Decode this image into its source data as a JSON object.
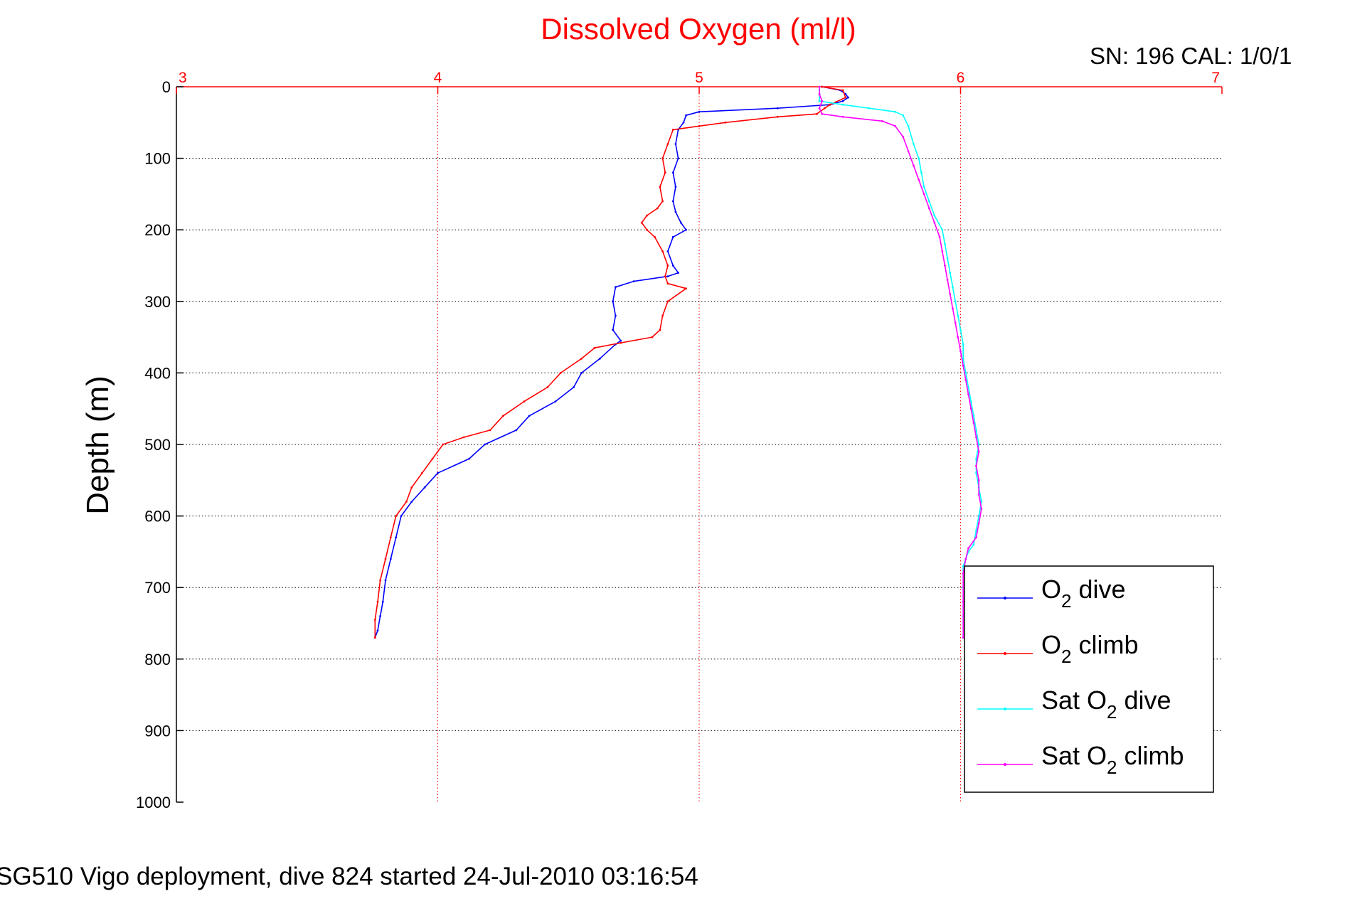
{
  "title": "Dissolved Oxygen (ml/l)",
  "sn_label": "SN: 196  CAL: 1/0/1",
  "footer": "SG510 Vigo deployment, dive 824 started 24-Jul-2010 03:16:54",
  "colors": {
    "title": "#ff0000",
    "x_axis": "#ff0000",
    "y_axis": "#000000",
    "x_grid": "#ff0000",
    "y_grid": "#000000",
    "background": "#ffffff"
  },
  "chart_data": {
    "type": "line",
    "title": "Dissolved Oxygen (ml/l)",
    "xlabel": "",
    "ylabel": "Depth (m)",
    "xlim": [
      3,
      7
    ],
    "ylim": [
      0,
      1000
    ],
    "y_reversed": true,
    "x_axis_location": "top",
    "xticks": [
      3,
      4,
      5,
      6,
      7
    ],
    "yticks": [
      0,
      100,
      200,
      300,
      400,
      500,
      600,
      700,
      800,
      900,
      1000
    ],
    "grid": true,
    "legend_position": "bottom-right",
    "series": [
      {
        "name": "O2 dive",
        "legend_main": "O",
        "legend_sub": "2",
        "legend_rest": " dive",
        "color": "#0000ff",
        "points": [
          [
            5.47,
            0
          ],
          [
            5.54,
            5
          ],
          [
            5.56,
            10
          ],
          [
            5.57,
            15
          ],
          [
            5.55,
            20
          ],
          [
            5.5,
            25
          ],
          [
            5.3,
            30
          ],
          [
            5.0,
            35
          ],
          [
            4.95,
            40
          ],
          [
            4.94,
            50
          ],
          [
            4.92,
            60
          ],
          [
            4.91,
            80
          ],
          [
            4.92,
            100
          ],
          [
            4.9,
            120
          ],
          [
            4.91,
            140
          ],
          [
            4.9,
            160
          ],
          [
            4.91,
            175
          ],
          [
            4.93,
            190
          ],
          [
            4.95,
            200
          ],
          [
            4.9,
            210
          ],
          [
            4.88,
            230
          ],
          [
            4.9,
            250
          ],
          [
            4.92,
            260
          ],
          [
            4.88,
            265
          ],
          [
            4.75,
            272
          ],
          [
            4.68,
            280
          ],
          [
            4.67,
            300
          ],
          [
            4.68,
            320
          ],
          [
            4.67,
            340
          ],
          [
            4.7,
            355
          ],
          [
            4.68,
            360
          ],
          [
            4.62,
            380
          ],
          [
            4.55,
            400
          ],
          [
            4.52,
            420
          ],
          [
            4.45,
            440
          ],
          [
            4.35,
            460
          ],
          [
            4.3,
            480
          ],
          [
            4.18,
            500
          ],
          [
            4.12,
            520
          ],
          [
            4.0,
            540
          ],
          [
            3.95,
            560
          ],
          [
            3.9,
            580
          ],
          [
            3.86,
            600
          ],
          [
            3.84,
            630
          ],
          [
            3.82,
            660
          ],
          [
            3.8,
            690
          ],
          [
            3.79,
            720
          ],
          [
            3.78,
            740
          ],
          [
            3.77,
            760
          ],
          [
            3.76,
            770
          ]
        ]
      },
      {
        "name": "O2 climb",
        "legend_main": "O",
        "legend_sub": "2",
        "legend_rest": " climb",
        "color": "#ff0000",
        "points": [
          [
            5.47,
            0
          ],
          [
            5.55,
            5
          ],
          [
            5.56,
            15
          ],
          [
            5.5,
            25
          ],
          [
            5.48,
            30
          ],
          [
            5.45,
            38
          ],
          [
            5.3,
            42
          ],
          [
            5.1,
            50
          ],
          [
            5.0,
            55
          ],
          [
            4.9,
            60
          ],
          [
            4.88,
            80
          ],
          [
            4.86,
            100
          ],
          [
            4.87,
            120
          ],
          [
            4.85,
            140
          ],
          [
            4.86,
            160
          ],
          [
            4.84,
            170
          ],
          [
            4.8,
            180
          ],
          [
            4.78,
            190
          ],
          [
            4.8,
            200
          ],
          [
            4.83,
            210
          ],
          [
            4.86,
            230
          ],
          [
            4.88,
            250
          ],
          [
            4.87,
            265
          ],
          [
            4.88,
            275
          ],
          [
            4.95,
            282
          ],
          [
            4.88,
            300
          ],
          [
            4.86,
            320
          ],
          [
            4.85,
            340
          ],
          [
            4.82,
            350
          ],
          [
            4.7,
            358
          ],
          [
            4.6,
            365
          ],
          [
            4.55,
            380
          ],
          [
            4.47,
            400
          ],
          [
            4.42,
            420
          ],
          [
            4.33,
            440
          ],
          [
            4.25,
            460
          ],
          [
            4.2,
            480
          ],
          [
            4.1,
            490
          ],
          [
            4.02,
            500
          ],
          [
            3.98,
            520
          ],
          [
            3.94,
            540
          ],
          [
            3.9,
            560
          ],
          [
            3.88,
            580
          ],
          [
            3.84,
            600
          ],
          [
            3.82,
            630
          ],
          [
            3.8,
            660
          ],
          [
            3.78,
            690
          ],
          [
            3.77,
            720
          ],
          [
            3.76,
            745
          ],
          [
            3.76,
            770
          ]
        ]
      },
      {
        "name": "Sat O2 dive",
        "legend_main": "Sat O",
        "legend_sub": "2",
        "legend_rest": " dive",
        "color": "#00ffff",
        "points": [
          [
            5.46,
            0
          ],
          [
            5.46,
            10
          ],
          [
            5.46,
            20
          ],
          [
            5.55,
            25
          ],
          [
            5.65,
            30
          ],
          [
            5.75,
            35
          ],
          [
            5.78,
            40
          ],
          [
            5.8,
            55
          ],
          [
            5.82,
            80
          ],
          [
            5.84,
            100
          ],
          [
            5.85,
            120
          ],
          [
            5.86,
            140
          ],
          [
            5.88,
            160
          ],
          [
            5.9,
            180
          ],
          [
            5.93,
            200
          ],
          [
            5.94,
            220
          ],
          [
            5.95,
            240
          ],
          [
            5.96,
            260
          ],
          [
            5.97,
            280
          ],
          [
            5.98,
            300
          ],
          [
            5.99,
            320
          ],
          [
            6.0,
            340
          ],
          [
            6.01,
            360
          ],
          [
            6.01,
            380
          ],
          [
            6.02,
            400
          ],
          [
            6.03,
            420
          ],
          [
            6.04,
            440
          ],
          [
            6.05,
            460
          ],
          [
            6.06,
            480
          ],
          [
            6.07,
            500
          ],
          [
            6.06,
            520
          ],
          [
            6.06,
            540
          ],
          [
            6.07,
            560
          ],
          [
            6.08,
            580
          ],
          [
            6.07,
            600
          ],
          [
            6.06,
            620
          ],
          [
            6.05,
            640
          ],
          [
            6.03,
            650
          ],
          [
            6.02,
            660
          ],
          [
            6.01,
            670
          ],
          [
            6.01,
            700
          ],
          [
            6.01,
            740
          ],
          [
            6.01,
            770
          ]
        ]
      },
      {
        "name": "Sat O2 climb",
        "legend_main": "Sat O",
        "legend_sub": "2",
        "legend_rest": " climb",
        "color": "#ff00ff",
        "points": [
          [
            5.46,
            0
          ],
          [
            5.46,
            10
          ],
          [
            5.47,
            20
          ],
          [
            5.46,
            30
          ],
          [
            5.47,
            38
          ],
          [
            5.55,
            42
          ],
          [
            5.7,
            48
          ],
          [
            5.75,
            55
          ],
          [
            5.78,
            70
          ],
          [
            5.8,
            90
          ],
          [
            5.82,
            110
          ],
          [
            5.84,
            130
          ],
          [
            5.86,
            150
          ],
          [
            5.88,
            170
          ],
          [
            5.9,
            190
          ],
          [
            5.92,
            210
          ],
          [
            5.93,
            230
          ],
          [
            5.94,
            250
          ],
          [
            5.95,
            270
          ],
          [
            5.96,
            290
          ],
          [
            5.97,
            310
          ],
          [
            5.98,
            330
          ],
          [
            5.99,
            350
          ],
          [
            6.0,
            370
          ],
          [
            6.01,
            390
          ],
          [
            6.02,
            410
          ],
          [
            6.03,
            430
          ],
          [
            6.04,
            450
          ],
          [
            6.05,
            470
          ],
          [
            6.06,
            490
          ],
          [
            6.07,
            510
          ],
          [
            6.06,
            530
          ],
          [
            6.07,
            550
          ],
          [
            6.07,
            570
          ],
          [
            6.08,
            590
          ],
          [
            6.07,
            610
          ],
          [
            6.06,
            630
          ],
          [
            6.03,
            645
          ],
          [
            6.02,
            660
          ],
          [
            6.01,
            680
          ],
          [
            6.01,
            720
          ],
          [
            6.01,
            770
          ]
        ]
      }
    ]
  }
}
